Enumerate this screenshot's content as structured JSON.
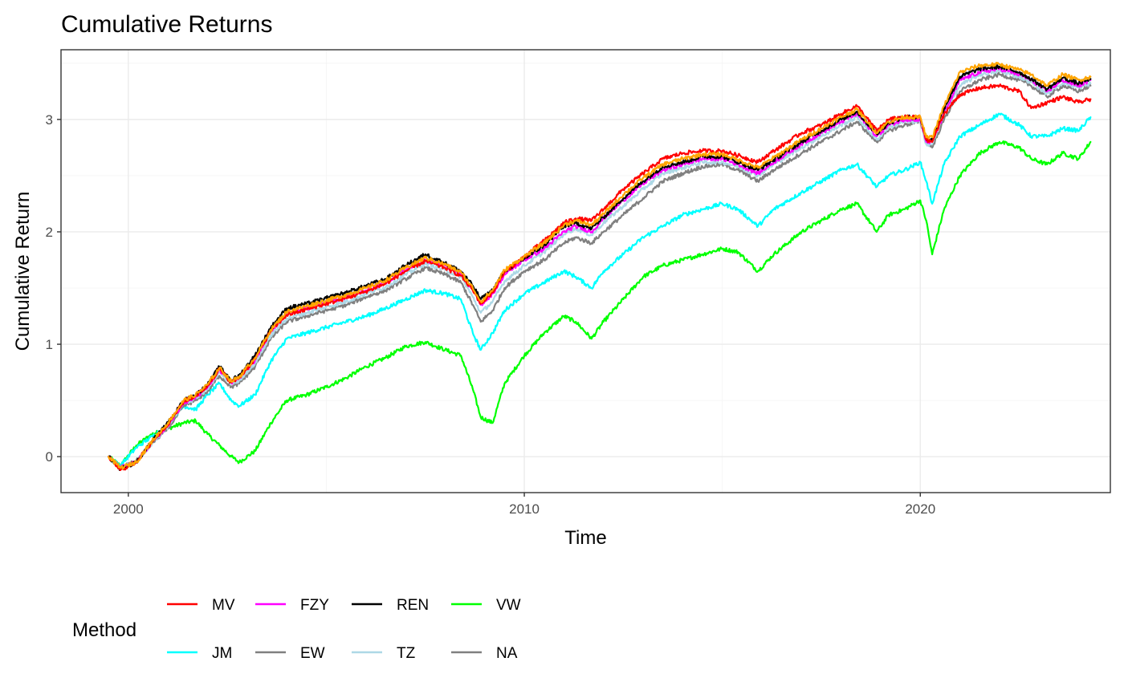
{
  "chart_data": {
    "type": "line",
    "title": "Cumulative Returns",
    "xlabel": "Time",
    "ylabel": "Cumulative Return",
    "xlim": [
      1998.3,
      2024.8
    ],
    "ylim": [
      -0.32,
      3.62
    ],
    "x_ticks": [
      2000,
      2010,
      2020
    ],
    "x_tick_labels": [
      "2000",
      "2010",
      "2020"
    ],
    "y_ticks": [
      0,
      1,
      2,
      3
    ],
    "y_tick_labels": [
      "0",
      "1",
      "2",
      "3"
    ],
    "grid": true,
    "legend": {
      "title": "Method",
      "position": "bottom",
      "rows": 2,
      "items": [
        {
          "label": "MV",
          "color": "#ff0000"
        },
        {
          "label": "FZY",
          "color": "#ff00ff"
        },
        {
          "label": "REN",
          "color": "#000000"
        },
        {
          "label": "VW",
          "color": "#00ff00"
        },
        {
          "label": "JM",
          "color": "#00ffff"
        },
        {
          "label": "EW",
          "color": "#808080"
        },
        {
          "label": "TZ",
          "color": "#add8e6"
        },
        {
          "label": "NA",
          "color": "#808080"
        }
      ]
    },
    "series": [
      {
        "color": "#00ff00",
        "x": [
          1999.5,
          1999.8,
          2000.2,
          2000.6,
          2001.0,
          2001.4,
          2001.7,
          2002.0,
          2002.3,
          2002.6,
          2002.8,
          2003.2,
          2003.6,
          2004.0,
          2004.5,
          2005.0,
          2005.5,
          2006.0,
          2006.5,
          2007.0,
          2007.5,
          2008.0,
          2008.4,
          2008.7,
          2008.9,
          2009.2,
          2009.5,
          2010.0,
          2010.5,
          2011.0,
          2011.3,
          2011.7,
          2012.0,
          2012.5,
          2013.0,
          2013.5,
          2014.0,
          2014.5,
          2015.0,
          2015.4,
          2015.9,
          2016.3,
          2017.0,
          2017.5,
          2018.0,
          2018.4,
          2018.9,
          2019.2,
          2019.6,
          2020.0,
          2020.15,
          2020.3,
          2020.6,
          2021.0,
          2021.5,
          2022.0,
          2022.5,
          2022.8,
          2023.2,
          2023.6,
          2024.0,
          2024.3
        ],
        "y": [
          0.0,
          -0.08,
          0.1,
          0.2,
          0.25,
          0.3,
          0.32,
          0.2,
          0.1,
          0.0,
          -0.05,
          0.05,
          0.3,
          0.5,
          0.55,
          0.62,
          0.7,
          0.8,
          0.88,
          0.98,
          1.02,
          0.95,
          0.9,
          0.6,
          0.35,
          0.3,
          0.65,
          0.9,
          1.1,
          1.25,
          1.2,
          1.05,
          1.2,
          1.4,
          1.6,
          1.7,
          1.75,
          1.8,
          1.85,
          1.82,
          1.65,
          1.8,
          2.0,
          2.1,
          2.2,
          2.25,
          2.0,
          2.15,
          2.2,
          2.28,
          2.1,
          1.8,
          2.2,
          2.5,
          2.7,
          2.8,
          2.75,
          2.65,
          2.6,
          2.7,
          2.65,
          2.8
        ]
      },
      {
        "color": "#00ffff",
        "x": [
          1999.5,
          1999.8,
          2000.2,
          2000.6,
          2001.0,
          2001.4,
          2001.7,
          2002.0,
          2002.3,
          2002.6,
          2002.8,
          2003.2,
          2003.6,
          2004.0,
          2004.5,
          2005.0,
          2005.5,
          2006.0,
          2006.5,
          2007.0,
          2007.5,
          2008.0,
          2008.4,
          2008.7,
          2008.9,
          2009.2,
          2009.5,
          2010.0,
          2010.5,
          2011.0,
          2011.3,
          2011.7,
          2012.0,
          2012.5,
          2013.0,
          2013.5,
          2014.0,
          2014.5,
          2015.0,
          2015.4,
          2015.9,
          2016.3,
          2017.0,
          2017.5,
          2018.0,
          2018.4,
          2018.9,
          2019.2,
          2019.6,
          2020.0,
          2020.15,
          2020.3,
          2020.6,
          2021.0,
          2021.5,
          2022.0,
          2022.5,
          2022.8,
          2023.2,
          2023.6,
          2024.0,
          2024.3
        ],
        "y": [
          0.0,
          -0.08,
          0.08,
          0.18,
          0.28,
          0.45,
          0.42,
          0.55,
          0.65,
          0.5,
          0.45,
          0.55,
          0.85,
          1.05,
          1.1,
          1.15,
          1.2,
          1.25,
          1.32,
          1.4,
          1.48,
          1.45,
          1.4,
          1.1,
          0.95,
          1.1,
          1.3,
          1.45,
          1.55,
          1.65,
          1.6,
          1.5,
          1.65,
          1.8,
          1.95,
          2.05,
          2.15,
          2.2,
          2.25,
          2.2,
          2.05,
          2.2,
          2.35,
          2.45,
          2.55,
          2.6,
          2.4,
          2.5,
          2.55,
          2.62,
          2.45,
          2.25,
          2.6,
          2.85,
          2.95,
          3.05,
          2.95,
          2.85,
          2.85,
          2.92,
          2.9,
          3.02
        ]
      },
      {
        "color": "#808080",
        "x": [
          1999.5,
          1999.8,
          2000.2,
          2000.6,
          2001.0,
          2001.4,
          2001.7,
          2002.0,
          2002.3,
          2002.6,
          2002.8,
          2003.2,
          2003.6,
          2004.0,
          2004.5,
          2005.0,
          2005.5,
          2006.0,
          2006.5,
          2007.0,
          2007.5,
          2008.0,
          2008.4,
          2008.7,
          2008.9,
          2009.2,
          2009.5,
          2010.0,
          2010.5,
          2011.0,
          2011.3,
          2011.7,
          2012.0,
          2012.5,
          2013.0,
          2013.5,
          2014.0,
          2014.5,
          2015.0,
          2015.4,
          2015.9,
          2016.3,
          2017.0,
          2017.5,
          2018.0,
          2018.4,
          2018.9,
          2019.2,
          2019.6,
          2020.0,
          2020.15,
          2020.3,
          2020.6,
          2021.0,
          2021.5,
          2022.0,
          2022.5,
          2022.8,
          2023.2,
          2023.6,
          2024.0,
          2024.3
        ],
        "y": [
          0.0,
          -0.1,
          -0.04,
          0.12,
          0.25,
          0.45,
          0.5,
          0.58,
          0.72,
          0.62,
          0.65,
          0.8,
          1.05,
          1.2,
          1.25,
          1.3,
          1.35,
          1.42,
          1.48,
          1.58,
          1.68,
          1.62,
          1.55,
          1.35,
          1.2,
          1.3,
          1.5,
          1.65,
          1.75,
          1.9,
          1.95,
          1.9,
          2.0,
          2.15,
          2.3,
          2.45,
          2.52,
          2.58,
          2.6,
          2.55,
          2.45,
          2.55,
          2.7,
          2.8,
          2.9,
          2.98,
          2.8,
          2.9,
          2.95,
          2.98,
          2.8,
          2.75,
          3.0,
          3.25,
          3.35,
          3.4,
          3.35,
          3.3,
          3.2,
          3.3,
          3.25,
          3.3
        ]
      },
      {
        "color": "#add8e6",
        "x": [
          1999.5,
          1999.8,
          2000.2,
          2000.6,
          2001.0,
          2001.4,
          2001.7,
          2002.0,
          2002.3,
          2002.6,
          2002.8,
          2003.2,
          2003.6,
          2004.0,
          2004.5,
          2005.0,
          2005.5,
          2006.0,
          2006.5,
          2007.0,
          2007.5,
          2008.0,
          2008.4,
          2008.7,
          2008.9,
          2009.2,
          2009.5,
          2010.0,
          2010.5,
          2011.0,
          2011.3,
          2011.7,
          2012.0,
          2012.5,
          2013.0,
          2013.5,
          2014.0,
          2014.5,
          2015.0,
          2015.4,
          2015.9,
          2016.3,
          2017.0,
          2017.5,
          2018.0,
          2018.4,
          2018.9,
          2019.2,
          2019.6,
          2020.0,
          2020.15,
          2020.3,
          2020.6,
          2021.0,
          2021.5,
          2022.0,
          2022.5,
          2022.8,
          2023.2,
          2023.6,
          2024.0,
          2024.3
        ],
        "y": [
          0.0,
          -0.1,
          -0.05,
          0.12,
          0.27,
          0.47,
          0.52,
          0.6,
          0.75,
          0.65,
          0.68,
          0.83,
          1.08,
          1.23,
          1.28,
          1.33,
          1.38,
          1.45,
          1.51,
          1.62,
          1.72,
          1.66,
          1.6,
          1.42,
          1.28,
          1.38,
          1.56,
          1.7,
          1.82,
          1.98,
          2.03,
          1.97,
          2.08,
          2.23,
          2.38,
          2.52,
          2.57,
          2.62,
          2.62,
          2.58,
          2.5,
          2.6,
          2.75,
          2.85,
          2.95,
          3.02,
          2.82,
          2.93,
          2.98,
          2.98,
          2.78,
          2.78,
          3.05,
          3.3,
          3.4,
          3.43,
          3.38,
          3.33,
          3.23,
          3.33,
          3.28,
          3.32
        ]
      },
      {
        "color": "#ff00ff",
        "x": [
          1999.5,
          1999.8,
          2000.2,
          2000.6,
          2001.0,
          2001.4,
          2001.7,
          2002.0,
          2002.3,
          2002.6,
          2002.8,
          2003.2,
          2003.6,
          2004.0,
          2004.5,
          2005.0,
          2005.5,
          2006.0,
          2006.5,
          2007.0,
          2007.5,
          2008.0,
          2008.4,
          2008.7,
          2008.9,
          2009.2,
          2009.5,
          2010.0,
          2010.5,
          2011.0,
          2011.3,
          2011.7,
          2012.0,
          2012.5,
          2013.0,
          2013.5,
          2014.0,
          2014.5,
          2015.0,
          2015.4,
          2015.9,
          2016.3,
          2017.0,
          2017.5,
          2018.0,
          2018.4,
          2018.9,
          2019.2,
          2019.6,
          2020.0,
          2020.15,
          2020.3,
          2020.6,
          2021.0,
          2021.5,
          2022.0,
          2022.5,
          2022.8,
          2023.2,
          2023.6,
          2024.0,
          2024.3
        ],
        "y": [
          0.0,
          -0.1,
          -0.05,
          0.13,
          0.28,
          0.48,
          0.53,
          0.62,
          0.77,
          0.66,
          0.7,
          0.86,
          1.12,
          1.27,
          1.32,
          1.37,
          1.42,
          1.48,
          1.55,
          1.66,
          1.75,
          1.7,
          1.63,
          1.48,
          1.35,
          1.45,
          1.62,
          1.75,
          1.85,
          2.0,
          2.05,
          2.0,
          2.12,
          2.28,
          2.43,
          2.55,
          2.6,
          2.65,
          2.65,
          2.6,
          2.52,
          2.62,
          2.78,
          2.88,
          2.98,
          3.05,
          2.85,
          2.95,
          3.0,
          3.0,
          2.8,
          2.8,
          3.05,
          3.35,
          3.42,
          3.45,
          3.4,
          3.35,
          3.25,
          3.35,
          3.3,
          3.35
        ]
      },
      {
        "color": "#000000",
        "x": [
          1999.5,
          1999.8,
          2000.2,
          2000.6,
          2001.0,
          2001.4,
          2001.7,
          2002.0,
          2002.3,
          2002.6,
          2002.8,
          2003.2,
          2003.6,
          2004.0,
          2004.5,
          2005.0,
          2005.5,
          2006.0,
          2006.5,
          2007.0,
          2007.5,
          2008.0,
          2008.4,
          2008.7,
          2008.9,
          2009.2,
          2009.5,
          2010.0,
          2010.5,
          2011.0,
          2011.3,
          2011.7,
          2012.0,
          2012.5,
          2013.0,
          2013.5,
          2014.0,
          2014.5,
          2015.0,
          2015.4,
          2015.9,
          2016.3,
          2017.0,
          2017.5,
          2018.0,
          2018.4,
          2018.9,
          2019.2,
          2019.6,
          2020.0,
          2020.15,
          2020.3,
          2020.6,
          2021.0,
          2021.5,
          2022.0,
          2022.5,
          2022.8,
          2023.2,
          2023.6,
          2024.0,
          2024.3
        ],
        "y": [
          0.0,
          -0.11,
          -0.05,
          0.14,
          0.3,
          0.5,
          0.55,
          0.64,
          0.8,
          0.68,
          0.72,
          0.9,
          1.15,
          1.32,
          1.36,
          1.41,
          1.46,
          1.52,
          1.58,
          1.7,
          1.8,
          1.72,
          1.65,
          1.52,
          1.4,
          1.48,
          1.65,
          1.76,
          1.88,
          2.05,
          2.08,
          2.03,
          2.13,
          2.3,
          2.45,
          2.58,
          2.62,
          2.67,
          2.67,
          2.62,
          2.55,
          2.64,
          2.8,
          2.9,
          3.0,
          3.07,
          2.87,
          2.97,
          3.02,
          3.02,
          2.82,
          2.82,
          3.1,
          3.38,
          3.45,
          3.47,
          3.42,
          3.36,
          3.27,
          3.37,
          3.32,
          3.36
        ]
      },
      {
        "color": "#ff0000",
        "x": [
          1999.5,
          1999.8,
          2000.2,
          2000.6,
          2001.0,
          2001.4,
          2001.7,
          2002.0,
          2002.3,
          2002.6,
          2002.8,
          2003.2,
          2003.6,
          2004.0,
          2004.5,
          2005.0,
          2005.5,
          2006.0,
          2006.5,
          2007.0,
          2007.5,
          2008.0,
          2008.4,
          2008.7,
          2008.9,
          2009.2,
          2009.5,
          2010.0,
          2010.5,
          2011.0,
          2011.3,
          2011.7,
          2012.0,
          2012.5,
          2013.0,
          2013.5,
          2014.0,
          2014.5,
          2015.0,
          2015.4,
          2015.9,
          2016.3,
          2017.0,
          2017.5,
          2018.0,
          2018.4,
          2018.9,
          2019.2,
          2019.6,
          2020.0,
          2020.15,
          2020.3,
          2020.6,
          2021.0,
          2021.5,
          2022.0,
          2022.5,
          2022.8,
          2023.2,
          2023.6,
          2024.0,
          2024.3
        ],
        "y": [
          0.0,
          -0.12,
          -0.05,
          0.13,
          0.29,
          0.49,
          0.54,
          0.63,
          0.78,
          0.66,
          0.7,
          0.87,
          1.12,
          1.26,
          1.31,
          1.36,
          1.41,
          1.47,
          1.54,
          1.65,
          1.74,
          1.68,
          1.61,
          1.48,
          1.36,
          1.46,
          1.64,
          1.78,
          1.92,
          2.08,
          2.12,
          2.1,
          2.2,
          2.38,
          2.52,
          2.65,
          2.7,
          2.72,
          2.72,
          2.68,
          2.62,
          2.72,
          2.88,
          2.95,
          3.05,
          3.12,
          2.9,
          3.0,
          3.02,
          3.02,
          2.82,
          2.8,
          3.05,
          3.22,
          3.28,
          3.3,
          3.25,
          3.1,
          3.15,
          3.2,
          3.15,
          3.18
        ]
      },
      {
        "color": "#ffa500",
        "x": [
          1999.5,
          1999.8,
          2000.2,
          2000.6,
          2001.0,
          2001.4,
          2001.7,
          2002.0,
          2002.3,
          2002.6,
          2002.8,
          2003.2,
          2003.6,
          2004.0,
          2004.5,
          2005.0,
          2005.5,
          2006.0,
          2006.5,
          2007.0,
          2007.5,
          2008.0,
          2008.4,
          2008.7,
          2008.9,
          2009.2,
          2009.5,
          2010.0,
          2010.5,
          2011.0,
          2011.3,
          2011.7,
          2012.0,
          2012.5,
          2013.0,
          2013.5,
          2014.0,
          2014.5,
          2015.0,
          2015.4,
          2015.9,
          2016.3,
          2017.0,
          2017.5,
          2018.0,
          2018.4,
          2018.9,
          2019.2,
          2019.6,
          2020.0,
          2020.15,
          2020.3,
          2020.6,
          2021.0,
          2021.5,
          2022.0,
          2022.5,
          2022.8,
          2023.2,
          2023.6,
          2024.0,
          2024.3
        ],
        "y": [
          0.0,
          -0.1,
          -0.05,
          0.14,
          0.3,
          0.5,
          0.55,
          0.64,
          0.79,
          0.67,
          0.71,
          0.88,
          1.13,
          1.29,
          1.34,
          1.39,
          1.44,
          1.5,
          1.57,
          1.68,
          1.77,
          1.71,
          1.64,
          1.5,
          1.38,
          1.48,
          1.66,
          1.78,
          1.9,
          2.06,
          2.1,
          2.06,
          2.16,
          2.33,
          2.48,
          2.6,
          2.65,
          2.69,
          2.69,
          2.64,
          2.57,
          2.66,
          2.82,
          2.92,
          3.02,
          3.09,
          2.88,
          2.98,
          3.02,
          3.02,
          2.84,
          2.84,
          3.12,
          3.42,
          3.48,
          3.49,
          3.44,
          3.4,
          3.3,
          3.4,
          3.35,
          3.38
        ]
      }
    ]
  }
}
